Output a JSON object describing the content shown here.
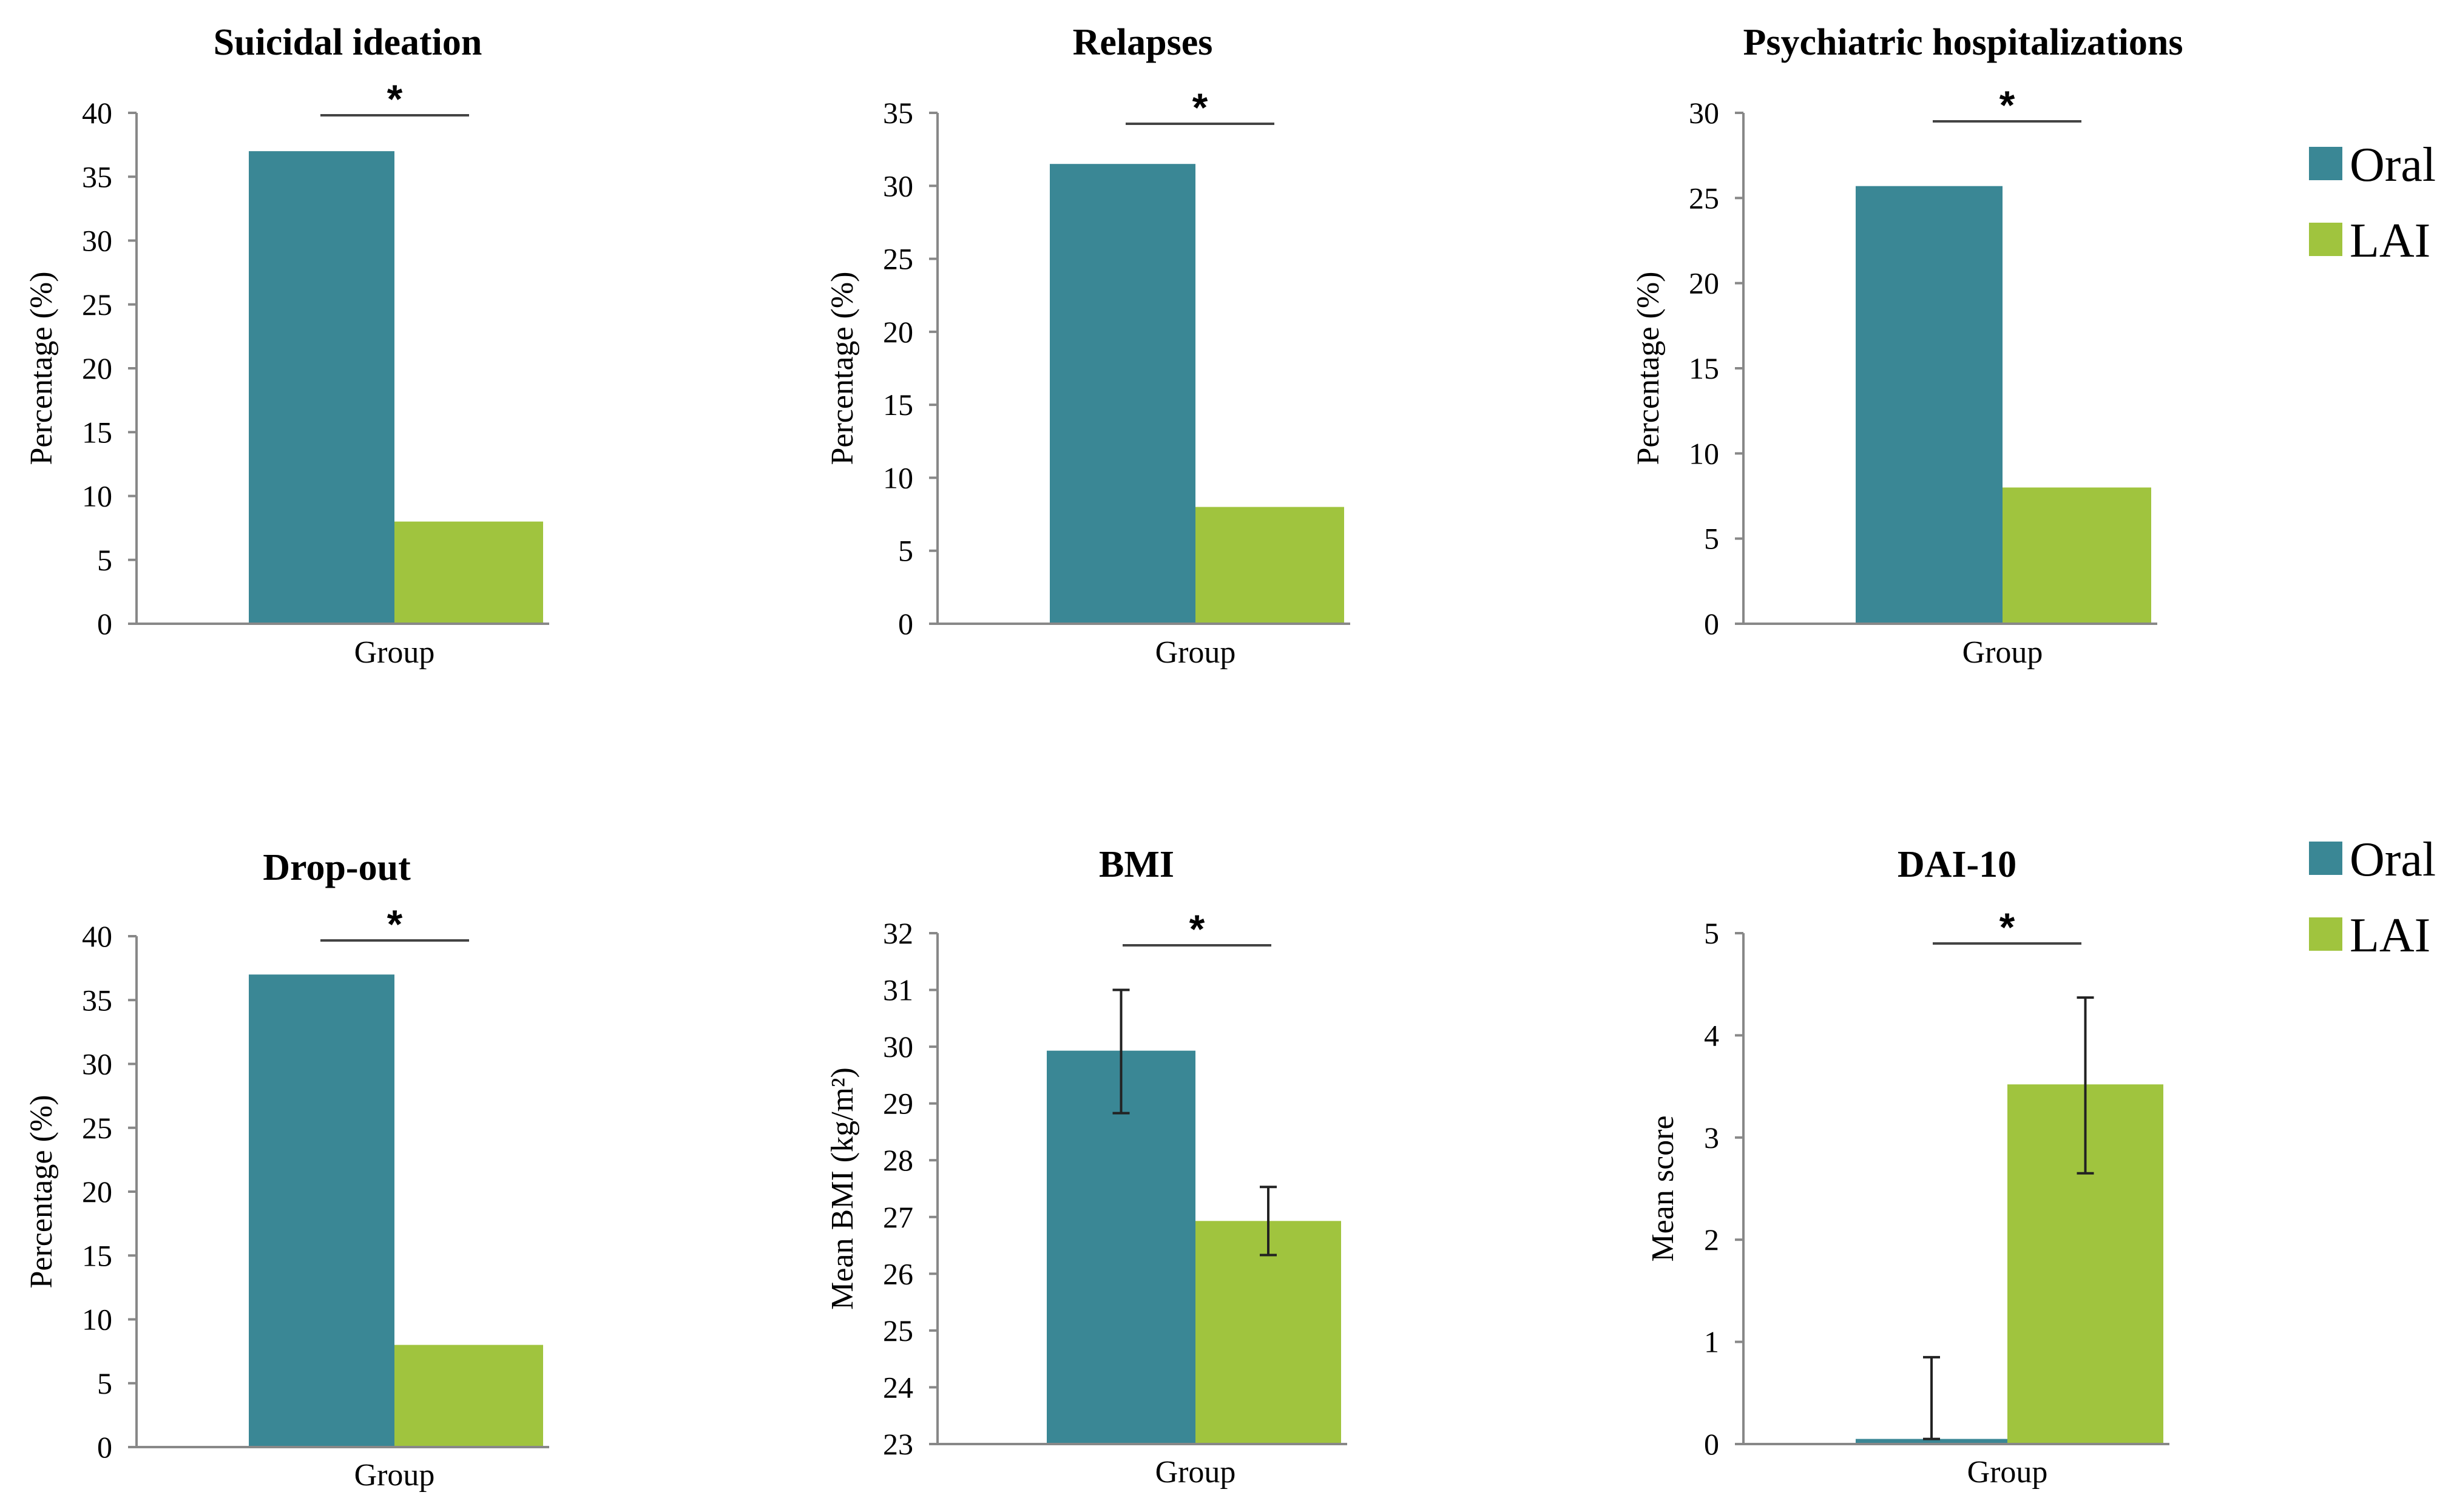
{
  "legend_top": [
    {
      "label": "Oral",
      "color": "#3A8795"
    },
    {
      "label": "LAI",
      "color": "#A0C43E"
    }
  ],
  "legend_bottom": [
    {
      "label": "Oral",
      "color": "#3A8795"
    },
    {
      "label": "LAI",
      "color": "#A0C43E"
    }
  ],
  "chart_data": [
    {
      "type": "bar",
      "title": "Suicidal ideation",
      "xlabel": "Group",
      "ylabel": "Percentage (%)",
      "ylim": [
        0,
        40
      ],
      "yticks": [
        0,
        5,
        10,
        15,
        20,
        25,
        30,
        35,
        40
      ],
      "categories": [
        "Group"
      ],
      "series": [
        {
          "name": "Oral",
          "color": "#3A8795",
          "values": [
            37
          ]
        },
        {
          "name": "LAI",
          "color": "#A0C43E",
          "values": [
            8
          ]
        }
      ],
      "significance": "*"
    },
    {
      "type": "bar",
      "title": "Relapses",
      "xlabel": "Group",
      "ylabel": "Percentage (%)",
      "ylim": [
        0,
        35
      ],
      "yticks": [
        0,
        5,
        10,
        15,
        20,
        25,
        30,
        35
      ],
      "categories": [
        "Group"
      ],
      "series": [
        {
          "name": "Oral",
          "color": "#3A8795",
          "values": [
            31.5
          ]
        },
        {
          "name": "LAI",
          "color": "#A0C43E",
          "values": [
            8
          ]
        }
      ],
      "significance": "*"
    },
    {
      "type": "bar",
      "title": "Psychiatric hospitalizations",
      "xlabel": "Group",
      "ylabel": "Percentage (%)",
      "ylim": [
        0,
        30
      ],
      "yticks": [
        0,
        5,
        10,
        15,
        20,
        25,
        30
      ],
      "categories": [
        "Group"
      ],
      "series": [
        {
          "name": "Oral",
          "color": "#3A8795",
          "values": [
            25.7
          ]
        },
        {
          "name": "LAI",
          "color": "#A0C43E",
          "values": [
            8
          ]
        }
      ],
      "significance": "*"
    },
    {
      "type": "bar",
      "title": "Drop-out",
      "xlabel": "Group",
      "ylabel": "Percentage (%)",
      "ylim": [
        0,
        40
      ],
      "yticks": [
        0,
        5,
        10,
        15,
        20,
        25,
        30,
        35,
        40
      ],
      "categories": [
        "Group"
      ],
      "series": [
        {
          "name": "Oral",
          "color": "#3A8795",
          "values": [
            37
          ]
        },
        {
          "name": "LAI",
          "color": "#A0C43E",
          "values": [
            8
          ]
        }
      ],
      "significance": "*"
    },
    {
      "type": "bar",
      "title": "BMI",
      "xlabel": "Group",
      "ylabel": "Mean BMI (kg/m²)",
      "ylim": [
        23,
        32
      ],
      "yticks": [
        23,
        24,
        25,
        26,
        27,
        28,
        29,
        30,
        31,
        32
      ],
      "categories": [
        "Group"
      ],
      "series": [
        {
          "name": "Oral",
          "color": "#3A8795",
          "values": [
            29.93
          ],
          "error": [
            [
              28.83,
              31.0
            ]
          ]
        },
        {
          "name": "LAI",
          "color": "#A0C43E",
          "values": [
            26.93
          ],
          "error": [
            [
              26.33,
              27.53
            ]
          ]
        }
      ],
      "significance": "*"
    },
    {
      "type": "bar",
      "title": "DAI-10",
      "xlabel": "Group",
      "ylabel": "Mean score",
      "ylim": [
        0,
        5
      ],
      "yticks": [
        0,
        1,
        2,
        3,
        4,
        5
      ],
      "categories": [
        "Group"
      ],
      "series": [
        {
          "name": "Oral",
          "color": "#3A8795",
          "values": [
            0.05
          ],
          "error": [
            [
              0.05,
              0.85
            ]
          ]
        },
        {
          "name": "LAI",
          "color": "#A0C43E",
          "values": [
            3.52
          ],
          "error": [
            [
              2.65,
              4.37
            ]
          ]
        }
      ],
      "significance": "*"
    }
  ]
}
